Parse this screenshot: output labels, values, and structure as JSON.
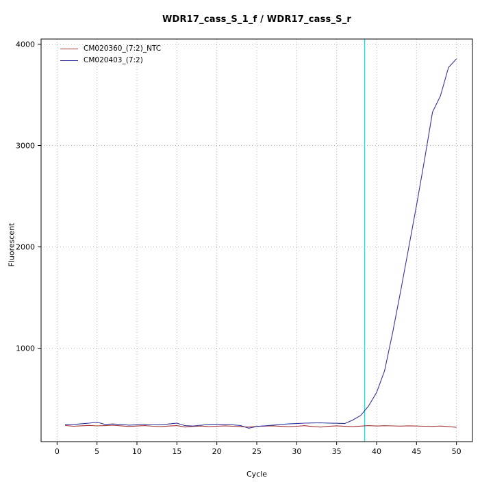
{
  "chart_data": {
    "type": "line",
    "title": "WDR17_cass_S_1_f / WDR17_cass_S_r",
    "xlabel": "Cycle",
    "ylabel": "Fluorescent",
    "xlim": [
      -2,
      52
    ],
    "ylim": [
      80,
      4050
    ],
    "xticks": [
      0,
      5,
      10,
      15,
      20,
      25,
      30,
      35,
      40,
      45,
      50
    ],
    "yticks": [
      1000,
      2000,
      3000,
      4000
    ],
    "grid": true,
    "grid_color": "#b4b4b4",
    "axis_color": "#000000",
    "legend_position": "top-left",
    "threshold_line": {
      "x": 38.5,
      "color": "#00e5e5"
    },
    "x": [
      1,
      2,
      3,
      4,
      5,
      6,
      7,
      8,
      9,
      10,
      11,
      12,
      13,
      14,
      15,
      16,
      17,
      18,
      19,
      20,
      21,
      22,
      23,
      24,
      25,
      26,
      27,
      28,
      29,
      30,
      31,
      32,
      33,
      34,
      35,
      36,
      37,
      38,
      39,
      40,
      41,
      42,
      43,
      44,
      45,
      46,
      47,
      48,
      49,
      50
    ],
    "series": [
      {
        "name": "CM020360_(7:2)_NTC",
        "color": "#a03434",
        "values": [
          240,
          232,
          236,
          240,
          235,
          238,
          242,
          236,
          230,
          234,
          238,
          232,
          228,
          234,
          238,
          224,
          230,
          234,
          228,
          232,
          236,
          232,
          228,
          224,
          230,
          233,
          236,
          231,
          227,
          232,
          237,
          229,
          224,
          231,
          236,
          231,
          228,
          233,
          238,
          234,
          237,
          235,
          233,
          236,
          234,
          232,
          230,
          234,
          228,
          221
        ]
      },
      {
        "name": "CM020403_(7:2)",
        "color": "#34349c",
        "values": [
          252,
          248,
          256,
          262,
          272,
          250,
          254,
          250,
          243,
          247,
          252,
          249,
          247,
          254,
          262,
          238,
          234,
          242,
          250,
          253,
          250,
          246,
          238,
          212,
          230,
          236,
          243,
          250,
          255,
          258,
          262,
          264,
          266,
          263,
          261,
          258,
          292,
          338,
          432,
          565,
          780,
          1150,
          1560,
          1985,
          2410,
          2860,
          3330,
          3490,
          3770,
          3855
        ]
      }
    ]
  }
}
